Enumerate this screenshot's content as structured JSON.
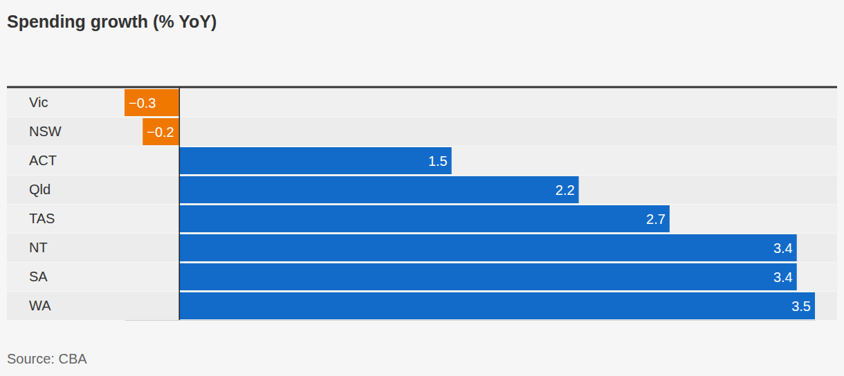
{
  "chart_data": {
    "type": "bar",
    "orientation": "horizontal",
    "title": "Spending growth (% YoY)",
    "source": "Source: CBA",
    "categories": [
      "Vic",
      "NSW",
      "ACT",
      "Qld",
      "TAS",
      "NT",
      "SA",
      "WA"
    ],
    "values": [
      -0.3,
      -0.2,
      1.5,
      2.2,
      2.7,
      3.4,
      3.4,
      3.5
    ],
    "value_labels": [
      "−0.3",
      "−0.2",
      "1.5",
      "2.2",
      "2.7",
      "3.4",
      "3.4",
      "3.5"
    ],
    "colors": [
      "#f07800",
      "#f07800",
      "#126bc9",
      "#126bc9",
      "#126bc9",
      "#126bc9",
      "#126bc9",
      "#126bc9"
    ],
    "xlim": [
      -0.3,
      3.5
    ],
    "xticks": [
      0
    ],
    "tick_labels": "y",
    "data_labels": true,
    "grid": false
  }
}
